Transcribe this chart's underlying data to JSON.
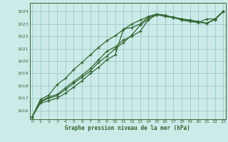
{
  "title": "Graphe pression niveau de la mer (hPa)",
  "xlim": [
    -0.3,
    23.3
  ],
  "ylim": [
    1015.3,
    1024.7
  ],
  "yticks": [
    1016,
    1017,
    1018,
    1019,
    1020,
    1021,
    1022,
    1023,
    1024
  ],
  "xticks": [
    0,
    1,
    2,
    3,
    4,
    5,
    6,
    7,
    8,
    9,
    10,
    11,
    12,
    13,
    14,
    15,
    16,
    17,
    18,
    19,
    20,
    21,
    22,
    23
  ],
  "bg_color": "#cceae8",
  "grid_color": "#99ccca",
  "line_color": "#336633",
  "series": [
    [
      1015.5,
      1016.6,
      1016.8,
      1017.0,
      1017.4,
      1017.9,
      1018.4,
      1019.0,
      1019.5,
      1020.1,
      1020.5,
      1022.6,
      1022.7,
      1023.0,
      1023.55,
      1023.75,
      1023.65,
      1023.55,
      1023.3,
      1023.2,
      1023.1,
      1023.4,
      1023.4,
      1024.0
    ],
    [
      1015.5,
      1016.7,
      1017.0,
      1017.2,
      1017.7,
      1018.2,
      1018.7,
      1019.2,
      1019.9,
      1020.4,
      1021.0,
      1021.5,
      1022.1,
      1022.9,
      1023.4,
      1023.75,
      1023.6,
      1023.5,
      1023.35,
      1023.25,
      1023.15,
      1023.05,
      1023.35,
      1024.0
    ],
    [
      1015.5,
      1016.75,
      1017.1,
      1017.3,
      1017.85,
      1018.35,
      1018.85,
      1019.4,
      1020.1,
      1020.8,
      1021.15,
      1021.7,
      1022.0,
      1022.4,
      1023.35,
      1023.75,
      1023.65,
      1023.55,
      1023.4,
      1023.3,
      1023.2,
      1023.05,
      1023.35,
      1024.0
    ],
    [
      1015.5,
      1016.9,
      1017.25,
      1018.1,
      1018.6,
      1019.3,
      1019.9,
      1020.5,
      1021.1,
      1021.65,
      1022.05,
      1022.55,
      1023.0,
      1023.3,
      1023.6,
      1023.8,
      1023.7,
      1023.5,
      1023.4,
      1023.3,
      1023.15,
      1023.05,
      1023.4,
      1024.0
    ]
  ]
}
